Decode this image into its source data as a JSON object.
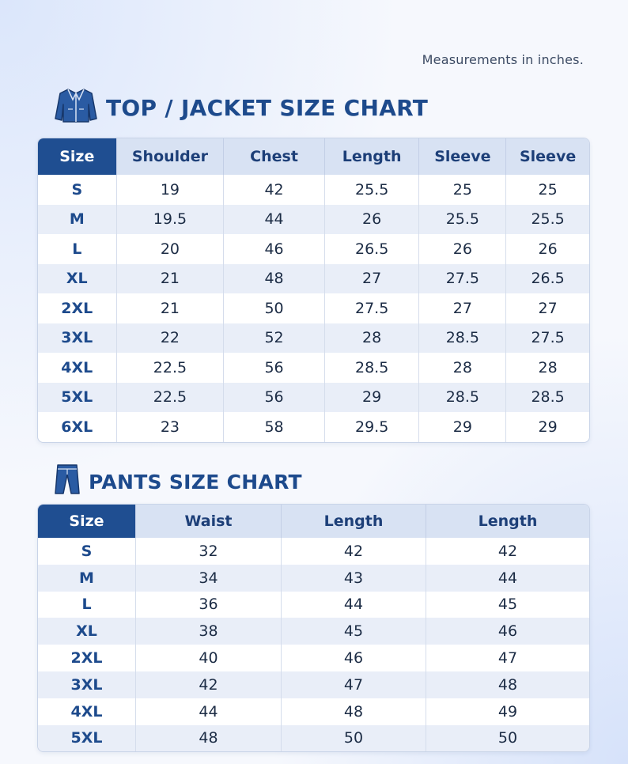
{
  "note": "Measurements in inches.",
  "top_chart": {
    "title": "TOP / JACKET SIZE CHART",
    "icon": "jacket-icon",
    "headers": [
      "Size",
      "Shoulder",
      "Chest",
      "Length",
      "Sleeve",
      "Sleeve"
    ],
    "rows": [
      [
        "S",
        "19",
        "42",
        "25.5",
        "25",
        "25"
      ],
      [
        "M",
        "19.5",
        "44",
        "26",
        "25.5",
        "25.5"
      ],
      [
        "L",
        "20",
        "46",
        "26.5",
        "26",
        "26"
      ],
      [
        "XL",
        "21",
        "48",
        "27",
        "27.5",
        "26.5"
      ],
      [
        "2XL",
        "21",
        "50",
        "27.5",
        "27",
        "27"
      ],
      [
        "3XL",
        "22",
        "52",
        "28",
        "28.5",
        "27.5"
      ],
      [
        "4XL",
        "22.5",
        "56",
        "28.5",
        "28",
        "28"
      ],
      [
        "5XL",
        "22.5",
        "56",
        "29",
        "28.5",
        "28.5"
      ],
      [
        "6XL",
        "23",
        "58",
        "29.5",
        "29",
        "29"
      ]
    ]
  },
  "pants_chart": {
    "title": "PANTS SIZE CHART",
    "icon": "pants-icon",
    "headers": [
      "Size",
      "Waist",
      "Length",
      "Length"
    ],
    "rows": [
      [
        "S",
        "32",
        "42",
        "42"
      ],
      [
        "M",
        "34",
        "43",
        "44"
      ],
      [
        "L",
        "36",
        "44",
        "45"
      ],
      [
        "XL",
        "38",
        "45",
        "46"
      ],
      [
        "2XL",
        "40",
        "46",
        "47"
      ],
      [
        "3XL",
        "42",
        "47",
        "48"
      ],
      [
        "4XL",
        "44",
        "48",
        "49"
      ],
      [
        "5XL",
        "48",
        "50",
        "50"
      ]
    ]
  },
  "colors": {
    "accent": "#1f4e91",
    "header_bg": "#d8e2f3",
    "row_alt": "#e9eef8"
  }
}
